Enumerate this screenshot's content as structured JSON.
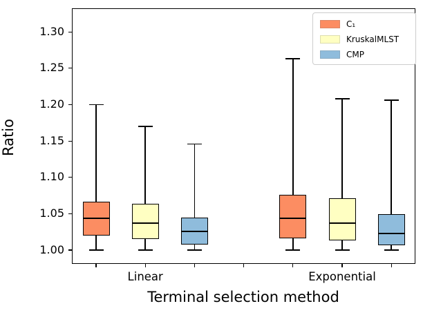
{
  "chart_data": {
    "type": "boxplot",
    "title": "",
    "xlabel": "Terminal selection method",
    "ylabel": "Ratio",
    "ylim": [
      0.982,
      1.3315
    ],
    "grid": false,
    "yticks": [
      {
        "value": 1.0,
        "label": "1.00"
      },
      {
        "value": 1.05,
        "label": "1.05"
      },
      {
        "value": 1.1,
        "label": "1.10"
      },
      {
        "value": 1.15,
        "label": "1.15"
      },
      {
        "value": 1.2,
        "label": "1.20"
      },
      {
        "value": 1.25,
        "label": "1.25"
      },
      {
        "value": 1.3,
        "label": "1.30"
      }
    ],
    "slot_count": 7,
    "groups": [
      {
        "label": "Linear",
        "slot": 1
      },
      {
        "label": "Exponential",
        "slot": 5
      }
    ],
    "series": [
      {
        "name": "C₁",
        "color": "#FC8D62",
        "boxes": [
          {
            "group": "Linear",
            "slot": 0,
            "whisker_low": 1.0,
            "q1": 1.02,
            "median": 1.044,
            "q3": 1.067,
            "whisker_high": 1.2
          },
          {
            "group": "Exponential",
            "slot": 4,
            "whisker_low": 1.0,
            "q1": 1.016,
            "median": 1.044,
            "q3": 1.076,
            "whisker_high": 1.263
          }
        ]
      },
      {
        "name": "KruskalMLST",
        "color": "#FFFFC2",
        "boxes": [
          {
            "group": "Linear",
            "slot": 1,
            "whisker_low": 1.0,
            "q1": 1.015,
            "median": 1.037,
            "q3": 1.064,
            "whisker_high": 1.17
          },
          {
            "group": "Exponential",
            "slot": 5,
            "whisker_low": 1.0,
            "q1": 1.013,
            "median": 1.037,
            "q3": 1.071,
            "whisker_high": 1.208
          }
        ]
      },
      {
        "name": "CMP",
        "color": "#8FBCDC",
        "boxes": [
          {
            "group": "Linear",
            "slot": 2,
            "whisker_low": 1.0,
            "q1": 1.008,
            "median": 1.026,
            "q3": 1.045,
            "whisker_high": 1.146
          },
          {
            "group": "Exponential",
            "slot": 6,
            "whisker_low": 1.0,
            "q1": 1.007,
            "median": 1.023,
            "q3": 1.049,
            "whisker_high": 1.206
          }
        ]
      }
    ],
    "legend": {
      "position": "upper right",
      "entries": [
        {
          "label": "C₁",
          "color": "#FC8D62"
        },
        {
          "label": "KruskalMLST",
          "color": "#FFFFC2"
        },
        {
          "label": "CMP",
          "color": "#8FBCDC"
        }
      ]
    }
  }
}
